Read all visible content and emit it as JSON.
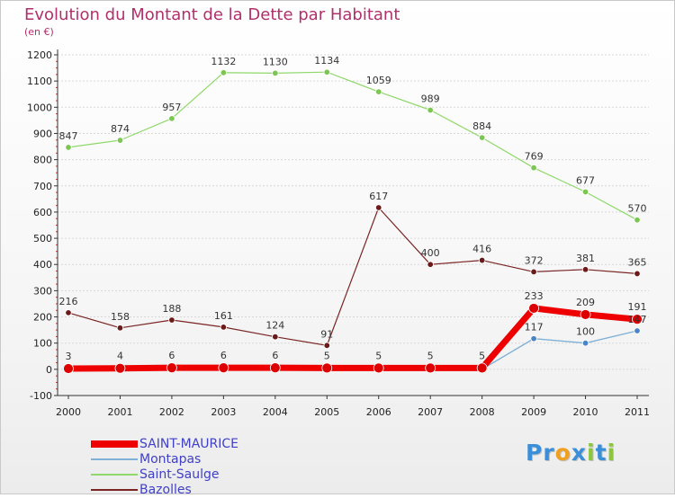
{
  "header": {
    "title": "Evolution du Montant de la Dette par Habitant",
    "unit": "(en €)"
  },
  "colors": {
    "title": "#b0306b",
    "grid": "#d8d8d8",
    "axis": "#333333"
  },
  "chart_data": {
    "type": "line",
    "title": "Evolution du Montant de la Dette par Habitant",
    "subtitle": "(en €)",
    "xlabel": "",
    "ylabel": "",
    "categories": [
      "2000",
      "2001",
      "2002",
      "2003",
      "2004",
      "2005",
      "2006",
      "2007",
      "2008",
      "2009",
      "2010",
      "2011"
    ],
    "ylim": [
      -100,
      1200
    ],
    "yticks": [
      "-100",
      "0",
      "100",
      "200",
      "300",
      "400",
      "500",
      "600",
      "700",
      "800",
      "900",
      "1000",
      "1100",
      "1200"
    ],
    "grid": "horizontal",
    "legend_position": "bottom-left",
    "series": [
      {
        "name": "Bazolles",
        "color": "#7a2424",
        "marker": "#6b1a1a",
        "width": 1.2,
        "values": [
          216,
          158,
          188,
          161,
          124,
          91,
          617,
          400,
          416,
          372,
          381,
          365
        ],
        "labels": [
          "216",
          "158",
          "188",
          "161",
          "124",
          "91",
          "617",
          "400",
          "416",
          "372",
          "381",
          "365"
        ]
      },
      {
        "name": "Saint-Saulge",
        "color": "#8fd86a",
        "marker": "#7cc653",
        "width": 1.2,
        "values": [
          847,
          874,
          957,
          1132,
          1130,
          1134,
          1059,
          989,
          884,
          769,
          677,
          570
        ],
        "labels": [
          "847",
          "874",
          "957",
          "1132",
          "1130",
          "1134",
          "1059",
          "989",
          "884",
          "769",
          "677",
          "570"
        ]
      },
      {
        "name": "Montapas",
        "color": "#7fb1d6",
        "marker": "#4a84c4",
        "width": 1.4,
        "values": [
          0,
          0,
          0,
          0,
          0,
          0,
          0,
          0,
          0,
          117,
          100,
          147
        ],
        "labels": [
          "",
          "",
          "",
          "",
          "",
          "",
          "",
          "",
          "",
          "117",
          "100",
          "147"
        ]
      },
      {
        "name": "SAINT-MAURICE",
        "color": "#ee0000",
        "marker": "#dd0000",
        "width": 7,
        "values": [
          3,
          4,
          6,
          6,
          6,
          5,
          5,
          5,
          5,
          233,
          209,
          191
        ],
        "labels": [
          "3",
          "4",
          "6",
          "6",
          "6",
          "5",
          "5",
          "5",
          "5",
          "233",
          "209",
          "191"
        ]
      }
    ]
  },
  "legend": {
    "items": [
      {
        "label": "SAINT-MAURICE",
        "color": "#ee0000"
      },
      {
        "label": "Montapas",
        "color": "#7fb1d6"
      },
      {
        "label": "Saint-Saulge",
        "color": "#8fd86a"
      },
      {
        "label": "Bazolles",
        "color": "#7a2424"
      }
    ]
  },
  "logo": {
    "letters": [
      "P",
      "r",
      "o",
      "x",
      "i",
      "t",
      "i"
    ],
    "colors": [
      "#3a8fd8",
      "#3a8fd8",
      "#f0a020",
      "#3a8fd8",
      "#8cc63e",
      "#3a8fd8",
      "#8cc63e"
    ]
  }
}
